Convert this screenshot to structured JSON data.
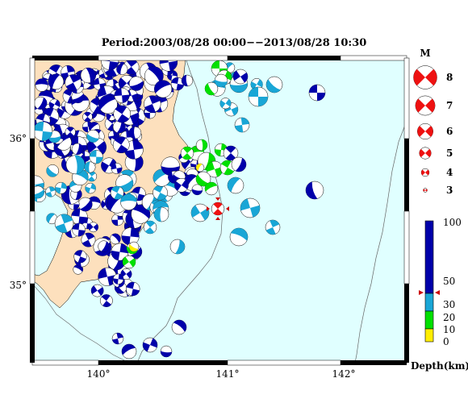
{
  "title": "Period:2003/08/28 00:00−−2013/08/28 10:30",
  "map": {
    "lon_labels": [
      "140°",
      "141°",
      "142°"
    ],
    "lat_labels": [
      "36°",
      "35°"
    ],
    "colors": {
      "sea": "#e0ffff",
      "land": "#fde0bd",
      "frame": "#000000"
    }
  },
  "legend_m": {
    "header": "M",
    "items": [
      {
        "label": "8",
        "mag": 8
      },
      {
        "label": "7",
        "mag": 7
      },
      {
        "label": "6",
        "mag": 6
      },
      {
        "label": "5",
        "mag": 5
      },
      {
        "label": "4",
        "mag": 4
      },
      {
        "label": "3",
        "mag": 3
      }
    ],
    "color": "#ee1111"
  },
  "depth_scale": {
    "title": "Depth(km)",
    "ticks": [
      "100",
      "50",
      "30",
      "20",
      "10",
      "0"
    ],
    "colors": {
      "deep": "#0000aa",
      "mid": "#19a6d6",
      "shallow": "#00e000",
      "surface": "#ffee00"
    }
  }
}
